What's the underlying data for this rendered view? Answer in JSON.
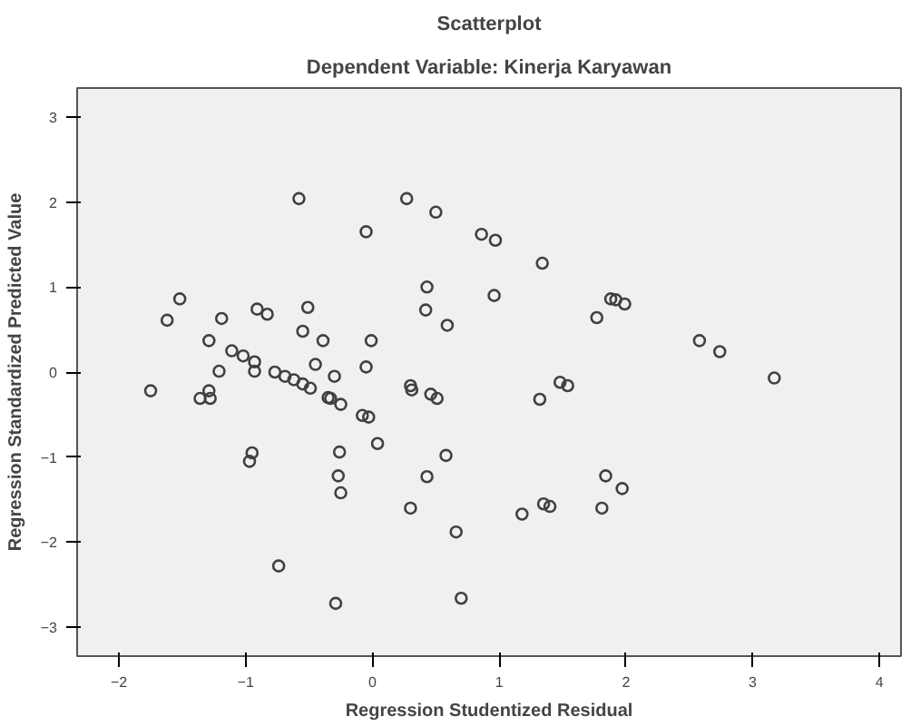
{
  "chart_data": {
    "type": "scatter",
    "title": "Scatterplot",
    "subtitle": "Dependent Variable: Kinerja Karyawan",
    "xlabel": "Regression Studentized Residual",
    "ylabel": "Regression Standardized Predicted Value",
    "xlim": [
      -2.33,
      4.17
    ],
    "ylim": [
      -3.34,
      3.34
    ],
    "xticks": [
      -2,
      -1,
      0,
      1,
      2,
      3,
      4
    ],
    "yticks": [
      -3,
      -2,
      -1,
      0,
      1,
      2,
      3
    ],
    "grid": false,
    "marker": "circle",
    "series": [
      {
        "color": "#404040",
        "x": [
          -0.58,
          0.27,
          0.5,
          -0.05,
          0.86,
          0.97,
          0.43,
          -1.52,
          -1.62,
          -1.19,
          -0.91,
          -0.83,
          -0.51,
          0.42,
          0.59,
          -0.55,
          -0.39,
          -0.01,
          -1.29,
          -1.11,
          -1.02,
          -0.93,
          -0.45,
          -1.21,
          -0.93,
          -0.3,
          -0.05,
          -0.77,
          -1.75,
          -1.29,
          -1.36,
          -1.28,
          -0.69,
          -0.62,
          -0.55,
          -0.49,
          -0.35,
          -0.33,
          -0.25,
          -0.08,
          -0.03,
          0.3,
          0.31,
          0.46,
          0.51,
          -0.95,
          -0.97,
          -0.26,
          0.04,
          0.58,
          -0.27,
          -0.25,
          0.43,
          0.3,
          0.66,
          -0.74,
          -0.29,
          0.7,
          1.34,
          0.96,
          1.88,
          1.92,
          1.99,
          1.77,
          2.58,
          2.74,
          3.17,
          1.48,
          1.54,
          1.32,
          1.84,
          1.97,
          1.35,
          1.4,
          1.18,
          1.81
        ],
        "values": [
          2.04,
          2.04,
          1.88,
          1.65,
          1.62,
          1.55,
          1.0,
          0.86,
          0.61,
          0.63,
          0.74,
          0.68,
          0.76,
          0.73,
          0.55,
          0.48,
          0.37,
          0.37,
          0.37,
          0.25,
          0.19,
          0.12,
          0.09,
          0.01,
          0.01,
          -0.05,
          0.06,
          0.0,
          -0.22,
          -0.22,
          -0.31,
          -0.31,
          -0.05,
          -0.09,
          -0.14,
          -0.19,
          -0.3,
          -0.31,
          -0.38,
          -0.51,
          -0.53,
          -0.16,
          -0.21,
          -0.26,
          -0.31,
          -0.95,
          -1.05,
          -0.94,
          -0.84,
          -0.98,
          -1.22,
          -1.42,
          -1.23,
          -1.6,
          -1.88,
          -2.28,
          -2.72,
          -2.66,
          1.28,
          0.9,
          0.86,
          0.85,
          0.8,
          0.64,
          0.37,
          0.24,
          -0.07,
          -0.12,
          -0.16,
          -0.32,
          -1.22,
          -1.37,
          -1.55,
          -1.58,
          -1.67,
          -1.6
        ]
      }
    ]
  }
}
